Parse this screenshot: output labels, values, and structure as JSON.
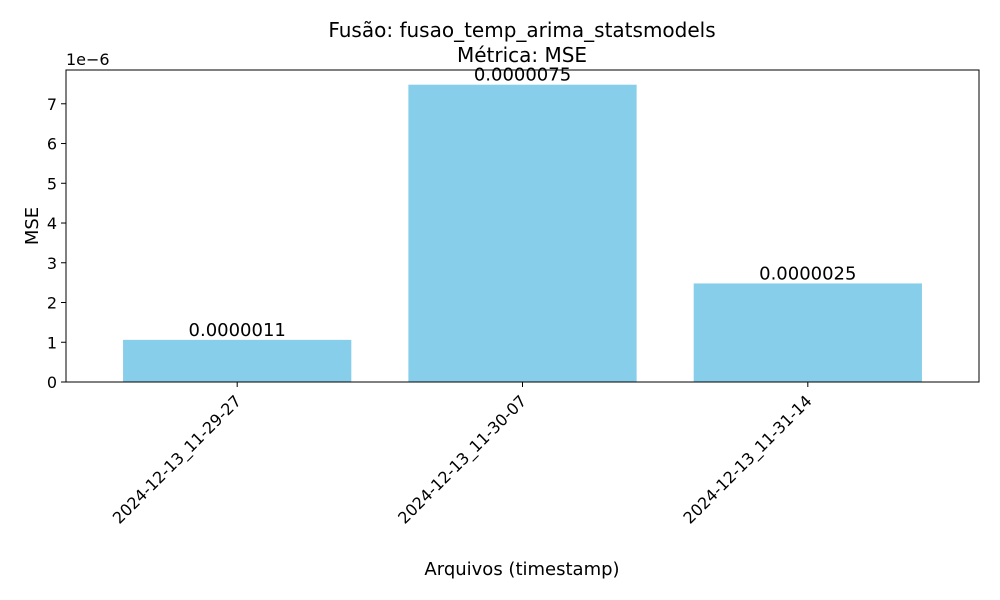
{
  "chart_data": {
    "type": "bar",
    "title_line1": "Fusão: fusao_temp_arima_statsmodels",
    "title_line2": "Métrica: MSE",
    "xlabel": "Arquivos (timestamp)",
    "ylabel": "MSE",
    "y_offset_label": "1e−6",
    "categories": [
      "2024-12-13_11-29-27",
      "2024-12-13_11-30-07",
      "2024-12-13_11-31-14"
    ],
    "values": [
      1.06e-06,
      7.48e-06,
      2.48e-06
    ],
    "data_labels": [
      "0.0000011",
      "0.0000075",
      "0.0000025"
    ],
    "yticks": [
      0,
      1e-06,
      2e-06,
      3e-06,
      4e-06,
      5e-06,
      6e-06,
      7e-06
    ],
    "ytick_labels": [
      "0",
      "1",
      "2",
      "3",
      "4",
      "5",
      "6",
      "7"
    ],
    "ylim": [
      0,
      7.85e-06
    ],
    "grid": false,
    "bar_color": "#87ceeb"
  }
}
